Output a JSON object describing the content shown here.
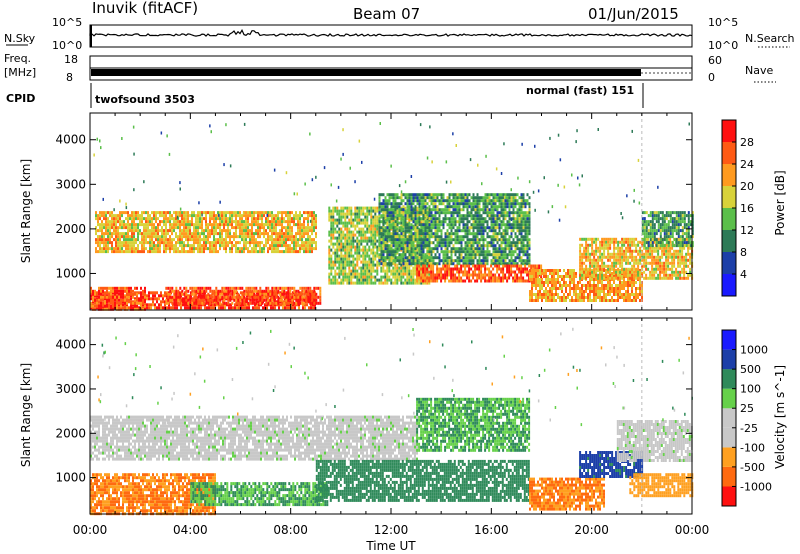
{
  "header": {
    "station": "Inuvik (fitACF)",
    "beam": "Beam 07",
    "date": "01/Jun/2015"
  },
  "strips": {
    "nsky_label": "N.Sky",
    "nsky_ticks": [
      "10^5",
      "10^0"
    ],
    "nsearch_label": "N.Search",
    "nsearch_ticks": [
      "10^5",
      "10^0"
    ],
    "freq_label": "Freq.",
    "freq_unit": "[MHz]",
    "freq_ticks": [
      "18",
      "8"
    ],
    "nave_label": "Nave",
    "nave_ticks": [
      "60",
      "0"
    ],
    "cpid_label": "CPID",
    "cpid_modes": [
      {
        "name": "twofsound 3503",
        "start_h": 0,
        "end_h": 22
      },
      {
        "name": "normal (fast) 151",
        "start_h": 22,
        "end_h": 24
      }
    ]
  },
  "chart_data": [
    {
      "type": "heatmap",
      "panel": "power",
      "ylabel": "Slant Range [km]",
      "xlabel": "",
      "xlim_hours": [
        0,
        24
      ],
      "ylim_km": [
        180,
        4600
      ],
      "yticks": [
        "4000",
        "3000",
        "2000",
        "1000"
      ],
      "xticks": [
        "00:00",
        "04:00",
        "08:00",
        "12:00",
        "16:00",
        "20:00",
        "00:00"
      ],
      "colorbar": {
        "label": "Power [dB]",
        "ticks": [
          "28",
          "24",
          "20",
          "16",
          "12",
          "8",
          "4"
        ],
        "colors_bottom_to_top": [
          "#1a1aff",
          "#1c3fa8",
          "#2d7a57",
          "#5bbf4a",
          "#d8d23a",
          "#ff9a1f",
          "#ff5a14",
          "#ff1010"
        ]
      },
      "echo_regions": [
        {
          "t0": 0.0,
          "t1": 9.0,
          "r0": 200,
          "r1": 600,
          "level": 28
        },
        {
          "t0": 0.0,
          "t1": 2.2,
          "r0": 200,
          "r1": 700,
          "level": 26
        },
        {
          "t0": 3.0,
          "t1": 9.2,
          "r0": 300,
          "r1": 700,
          "level": 27
        },
        {
          "t0": 0.2,
          "t1": 9.0,
          "r0": 1500,
          "r1": 2400,
          "level": 20
        },
        {
          "t0": 9.5,
          "t1": 13.5,
          "r0": 800,
          "r1": 2500,
          "level": 16
        },
        {
          "t0": 11.5,
          "t1": 17.5,
          "r0": 1200,
          "r1": 2800,
          "level": 12
        },
        {
          "t0": 13.0,
          "t1": 18.0,
          "r0": 800,
          "r1": 1200,
          "level": 26
        },
        {
          "t0": 17.5,
          "t1": 22.0,
          "r0": 400,
          "r1": 1100,
          "level": 22
        },
        {
          "t0": 19.5,
          "t1": 24.0,
          "r0": 900,
          "r1": 1800,
          "level": 20
        },
        {
          "t0": 22.0,
          "t1": 24.0,
          "r0": 1600,
          "r1": 2400,
          "level": 12
        }
      ]
    },
    {
      "type": "heatmap",
      "panel": "velocity",
      "ylabel": "Slant Range [km]",
      "xlabel": "Time UT",
      "xlim_hours": [
        0,
        24
      ],
      "ylim_km": [
        180,
        4600
      ],
      "yticks": [
        "4000",
        "3000",
        "2000",
        "1000"
      ],
      "xticks": [
        "00:00",
        "04:00",
        "08:00",
        "12:00",
        "16:00",
        "20:00",
        "00:00"
      ],
      "colorbar": {
        "label": "Velocity [m s^-1]",
        "ticks": [
          "1000",
          "500",
          "100",
          "25",
          "-25",
          "-100",
          "-500",
          "-1000"
        ],
        "colors_bottom_to_top": [
          "#ff1010",
          "#ff6a10",
          "#ffa020",
          "#c8c8c8",
          "#c8c8c8",
          "#66d14a",
          "#2f8a5a",
          "#1c3fa8",
          "#1a1aff"
        ]
      },
      "echo_regions": [
        {
          "t0": 0.0,
          "t1": 5.0,
          "r0": 200,
          "r1": 1100,
          "level": -500
        },
        {
          "t0": 0.0,
          "t1": 13.0,
          "r0": 1400,
          "r1": 2400,
          "level": 0
        },
        {
          "t0": 4.0,
          "t1": 9.5,
          "r0": 400,
          "r1": 900,
          "level": 100
        },
        {
          "t0": 9.0,
          "t1": 17.5,
          "r0": 500,
          "r1": 1400,
          "level": 300
        },
        {
          "t0": 13.0,
          "t1": 17.5,
          "r0": 1600,
          "r1": 2800,
          "level": 100
        },
        {
          "t0": 17.5,
          "t1": 20.5,
          "r0": 300,
          "r1": 1000,
          "level": -500
        },
        {
          "t0": 19.5,
          "t1": 22.0,
          "r0": 1000,
          "r1": 1600,
          "level": 700
        },
        {
          "t0": 21.0,
          "t1": 24.0,
          "r0": 1400,
          "r1": 2300,
          "level": 0
        },
        {
          "t0": 21.5,
          "t1": 24.0,
          "r0": 600,
          "r1": 1100,
          "level": -200
        }
      ]
    }
  ]
}
